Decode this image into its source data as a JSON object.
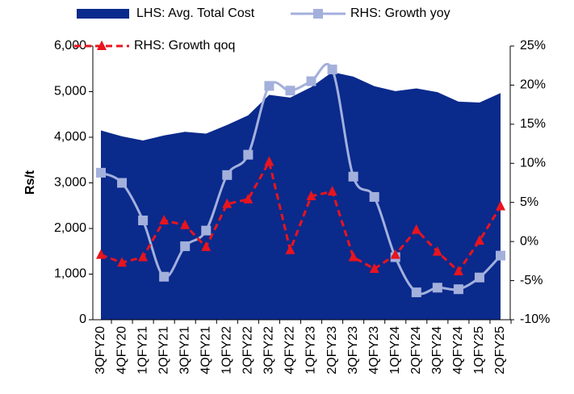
{
  "chart_data": {
    "type": "combo",
    "y_axis_label": "Rs/t",
    "categories": [
      "3QFY20",
      "4QFY20",
      "1QFY21",
      "2QFY21",
      "3QFY21",
      "4QFY21",
      "1QFY22",
      "2QFY22",
      "3QFY22",
      "4QFY22",
      "1QFY23",
      "2QFY23",
      "3QFY23",
      "4QFY23",
      "1QFY24",
      "2QFY24",
      "3QFY24",
      "4QFY24",
      "1QFY25",
      "2QFY25"
    ],
    "series": [
      {
        "name": "LHS: Avg. Total Cost",
        "kind": "area",
        "color": "#0a2a8c",
        "values": [
          4150,
          4020,
          3930,
          4040,
          4120,
          4080,
          4270,
          4480,
          4930,
          4870,
          5100,
          5430,
          5330,
          5120,
          5010,
          5070,
          4990,
          4780,
          4760,
          4970
        ]
      },
      {
        "name": "RHS: Growth yoy",
        "kind": "line",
        "axis": "y2",
        "color": "#a3b0dc",
        "values": [
          8.8,
          7.5,
          2.7,
          -4.5,
          -0.6,
          1.4,
          8.5,
          11.1,
          19.9,
          19.3,
          20.5,
          22.0,
          8.3,
          5.7,
          -2.0,
          -6.5,
          -5.9,
          -6.1,
          -4.6,
          -1.8
        ]
      },
      {
        "name": "RHS: Growth qoq",
        "kind": "dashed-line",
        "axis": "y2",
        "color": "#e8141e",
        "values": [
          -1.7,
          -2.7,
          -2.0,
          2.7,
          2.1,
          -0.7,
          4.8,
          5.4,
          10.2,
          -1.1,
          5.8,
          6.4,
          -2.0,
          -3.5,
          -1.7,
          1.5,
          -1.3,
          -3.8,
          0.1,
          4.5
        ]
      }
    ],
    "ylim": [
      0,
      6000
    ],
    "yticks": [
      0,
      {
        "value": 1000,
        "label": "1,000"
      },
      {
        "value": 2000,
        "label": "2,000"
      },
      {
        "value": 3000,
        "label": "3,000"
      },
      {
        "value": 4000,
        "label": "4,000"
      },
      {
        "value": 5000,
        "label": "5,000"
      },
      {
        "value": 6000,
        "label": "6,000"
      }
    ],
    "y2lim": [
      -10,
      25
    ],
    "y2ticks": [
      {
        "value": -10,
        "label": "-10%"
      },
      {
        "value": -5,
        "label": "-5%"
      },
      {
        "value": 0,
        "label": "0%"
      },
      {
        "value": 5,
        "label": "5%"
      },
      {
        "value": 10,
        "label": "10%"
      },
      {
        "value": 15,
        "label": "15%"
      },
      {
        "value": 20,
        "label": "20%"
      },
      {
        "value": 25,
        "label": "25%"
      }
    ],
    "legend_position": "top"
  }
}
